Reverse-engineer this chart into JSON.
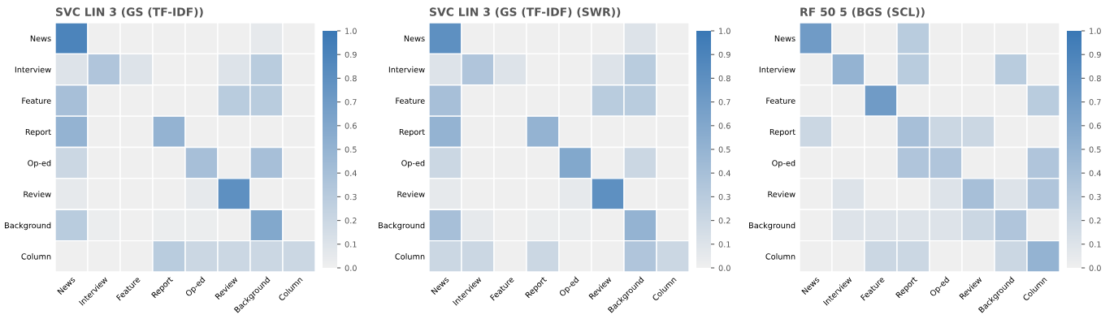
{
  "chart_data": [
    {
      "type": "heatmap",
      "title": "SVC LIN 3 (GS (TF-IDF))",
      "categories": [
        "News",
        "Interview",
        "Feature",
        "Report",
        "Op-ed",
        "Review",
        "Background",
        "Column"
      ],
      "y_categories": [
        "News",
        "Interview",
        "Feature",
        "Report",
        "Op-ed",
        "Review",
        "Background",
        "Column"
      ],
      "cells": [
        [
          0.9,
          0,
          0,
          0,
          0,
          0,
          0.05,
          0
        ],
        [
          0.1,
          0.35,
          0.1,
          0,
          0,
          0.1,
          0.3,
          0
        ],
        [
          0.4,
          0,
          0,
          0,
          0,
          0.3,
          0.3,
          0
        ],
        [
          0.5,
          0,
          0,
          0.5,
          0,
          0,
          0,
          0
        ],
        [
          0.2,
          0,
          0,
          0,
          0.4,
          0,
          0.4,
          0
        ],
        [
          0.05,
          0,
          0,
          0,
          0.05,
          0.8,
          0,
          0
        ],
        [
          0.3,
          0.02,
          0,
          0.02,
          0.02,
          0,
          0.6,
          0
        ],
        [
          0,
          0,
          0,
          0.3,
          0.2,
          0.2,
          0.2,
          0.2
        ]
      ],
      "clim": [
        0,
        1
      ],
      "cticks": [
        {
          "value": 0,
          "label": "0.0"
        },
        {
          "value": 0.1,
          "label": "0.1"
        },
        {
          "value": 0.2,
          "label": "0.2"
        },
        {
          "value": 0.3,
          "label": "0.3"
        },
        {
          "value": 0.4,
          "label": "0.4"
        },
        {
          "value": 0.5,
          "label": "0.5"
        },
        {
          "value": 0.6,
          "label": "0.6"
        },
        {
          "value": 0.7,
          "label": "0.7"
        },
        {
          "value": 0.8,
          "label": "0.8"
        },
        {
          "value": 0.9,
          "label": "0.9"
        },
        {
          "value": 1,
          "label": "1.0"
        }
      ]
    },
    {
      "type": "heatmap",
      "title": "SVC LIN 3 (GS (TF-IDF) (SWR))",
      "categories": [
        "News",
        "Interview",
        "Feature",
        "Report",
        "Op-ed",
        "Review",
        "Background",
        "Column"
      ],
      "y_categories": [
        "News",
        "Interview",
        "Feature",
        "Report",
        "Op-ed",
        "Review",
        "Background",
        "Column"
      ],
      "cells": [
        [
          0.8,
          0,
          0,
          0,
          0,
          0,
          0.1,
          0
        ],
        [
          0.1,
          0.35,
          0.1,
          0,
          0,
          0.1,
          0.3,
          0
        ],
        [
          0.4,
          0,
          0,
          0,
          0,
          0.3,
          0.3,
          0
        ],
        [
          0.5,
          0,
          0,
          0.5,
          0,
          0,
          0,
          0
        ],
        [
          0.2,
          0,
          0,
          0,
          0.6,
          0,
          0.2,
          0
        ],
        [
          0.05,
          0,
          0,
          0,
          0.05,
          0.8,
          0,
          0
        ],
        [
          0.4,
          0.05,
          0,
          0.02,
          0.02,
          0,
          0.5,
          0
        ],
        [
          0.2,
          0.2,
          0,
          0.2,
          0,
          0,
          0.35,
          0.2
        ]
      ],
      "clim": [
        0,
        1
      ],
      "cticks": [
        {
          "value": 0,
          "label": "0.0"
        },
        {
          "value": 0.1,
          "label": "0.1"
        },
        {
          "value": 0.2,
          "label": "0.2"
        },
        {
          "value": 0.3,
          "label": "0.3"
        },
        {
          "value": 0.4,
          "label": "0.4"
        },
        {
          "value": 0.5,
          "label": "0.5"
        },
        {
          "value": 0.6,
          "label": "0.6"
        },
        {
          "value": 0.7,
          "label": "0.7"
        },
        {
          "value": 0.8,
          "label": "0.8"
        },
        {
          "value": 0.9,
          "label": "0.9"
        },
        {
          "value": 1,
          "label": "1.0"
        }
      ]
    },
    {
      "type": "heatmap",
      "title": "RF 50 5 (BGS (SCL))",
      "categories": [
        "News",
        "Interview",
        "Feature",
        "Report",
        "Op-ed",
        "Review",
        "Background",
        "Column"
      ],
      "y_categories": [
        "News",
        "Interview",
        "Feature",
        "Report",
        "Op-ed",
        "Review",
        "Background",
        "Column"
      ],
      "cells": [
        [
          0.7,
          0,
          0,
          0.3,
          0,
          0,
          0,
          0
        ],
        [
          0,
          0.5,
          0,
          0.3,
          0,
          0,
          0.3,
          0
        ],
        [
          0,
          0,
          0.7,
          0,
          0,
          0,
          0,
          0.3
        ],
        [
          0.2,
          0,
          0,
          0.4,
          0.2,
          0.2,
          0,
          0
        ],
        [
          0,
          0,
          0,
          0.35,
          0.35,
          0,
          0,
          0.35
        ],
        [
          0,
          0.1,
          0,
          0,
          0.1,
          0.4,
          0.1,
          0.35
        ],
        [
          0,
          0.1,
          0.1,
          0.1,
          0.1,
          0.2,
          0.35,
          0
        ],
        [
          0,
          0,
          0.2,
          0.2,
          0,
          0,
          0.2,
          0.5
        ]
      ],
      "clim": [
        0,
        1
      ],
      "cticks": [
        {
          "value": 0,
          "label": "0.0"
        },
        {
          "value": 0.1,
          "label": "0.1"
        },
        {
          "value": 0.2,
          "label": "0.2"
        },
        {
          "value": 0.3,
          "label": "0.3"
        },
        {
          "value": 0.4,
          "label": "0.4"
        },
        {
          "value": 0.5,
          "label": "0.5"
        },
        {
          "value": 0.6,
          "label": "0.6"
        },
        {
          "value": 0.7,
          "label": "0.7"
        },
        {
          "value": 0.8,
          "label": "0.8"
        },
        {
          "value": 0.9,
          "label": "0.9"
        },
        {
          "value": 1,
          "label": "1.0"
        }
      ]
    }
  ]
}
